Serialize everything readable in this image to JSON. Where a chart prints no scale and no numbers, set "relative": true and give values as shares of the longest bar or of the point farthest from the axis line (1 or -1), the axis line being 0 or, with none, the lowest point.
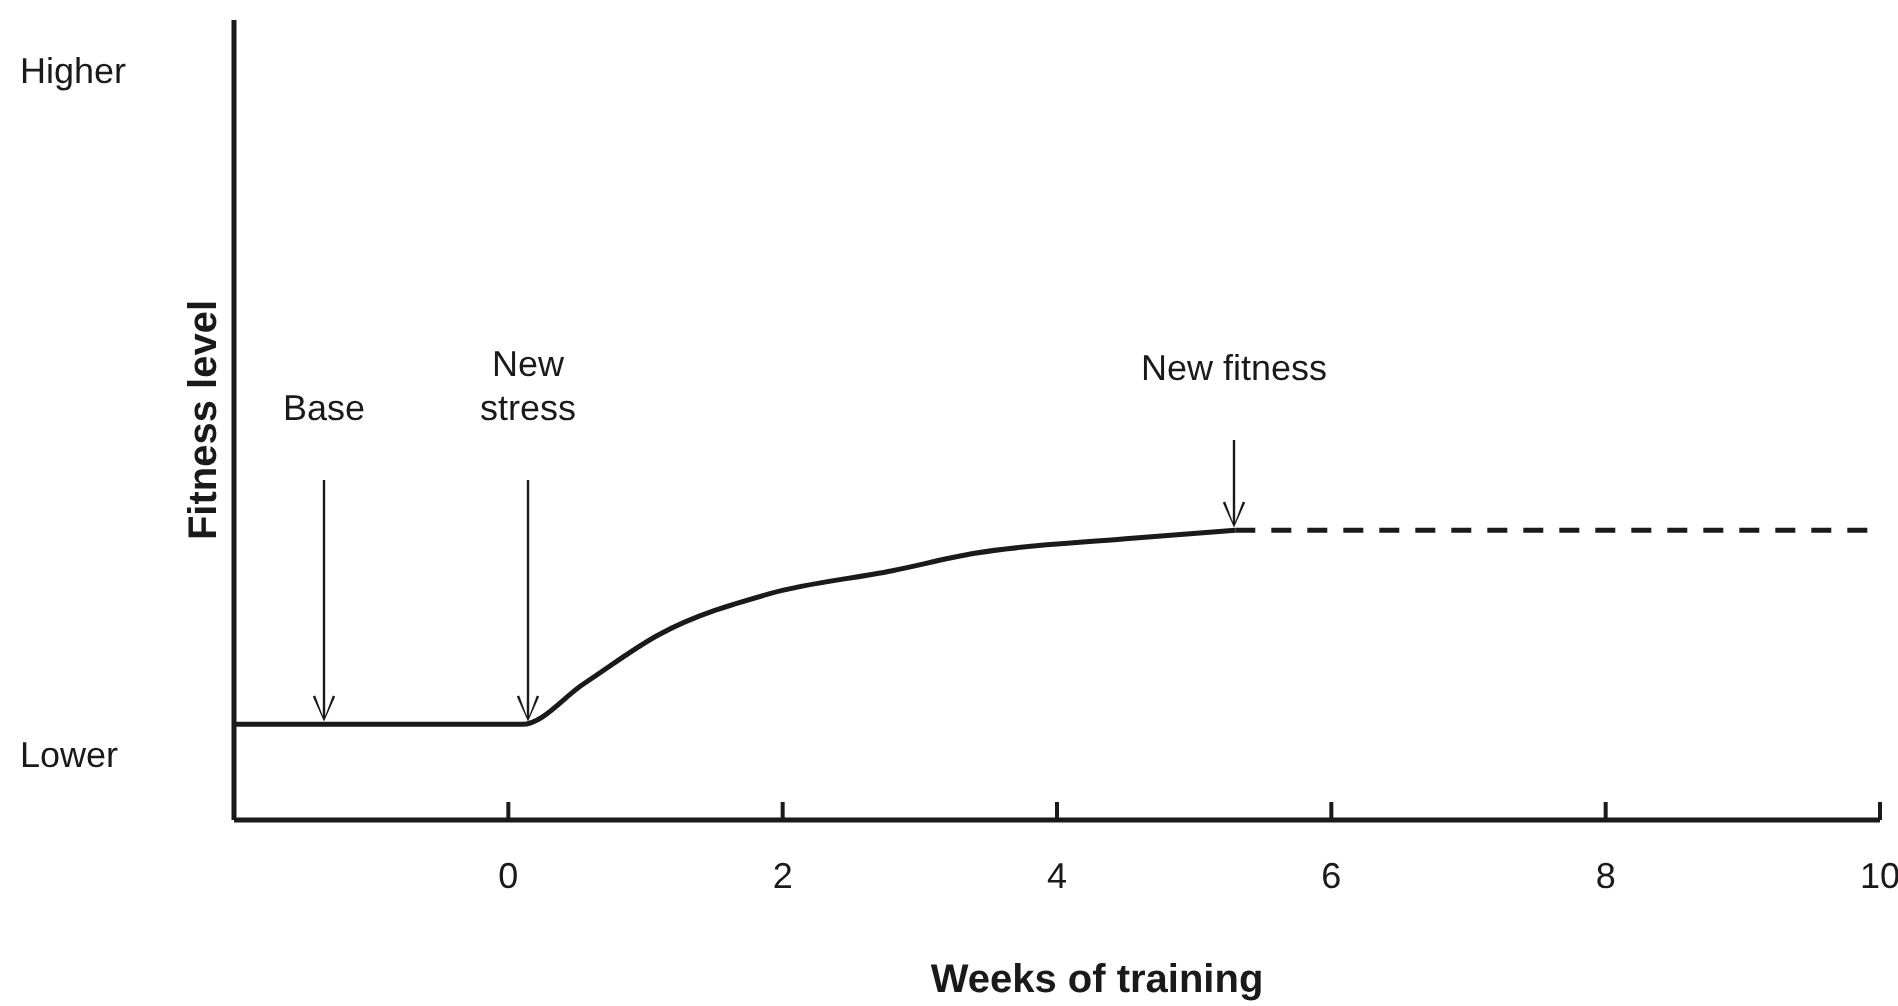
{
  "chart_data": {
    "type": "line",
    "xlabel": "Weeks of training",
    "ylabel": "Fitness level",
    "xlim": [
      -2,
      10
    ],
    "xticks": [
      0,
      2,
      4,
      6,
      8,
      10
    ],
    "relative": true,
    "marker": "none",
    "series": [
      {
        "color": "#1a1a1a",
        "line_style": "solid",
        "x": [
          -2,
          0.1,
          0.55,
          1.1,
          1.9,
          2.8,
          3.4,
          4.5,
          5.3
        ],
        "values": [
          0.33,
          0.33,
          0.47,
          0.64,
          0.78,
          0.86,
          0.92,
          0.97,
          1
        ]
      },
      {
        "color": "#1a1a1a",
        "line_style": "dashed",
        "x": [
          5.3,
          10
        ],
        "values": [
          1,
          1
        ]
      }
    ],
    "annotations": [
      "Higher",
      "Lower",
      "Base",
      "New\nstress",
      "New fitness"
    ]
  }
}
